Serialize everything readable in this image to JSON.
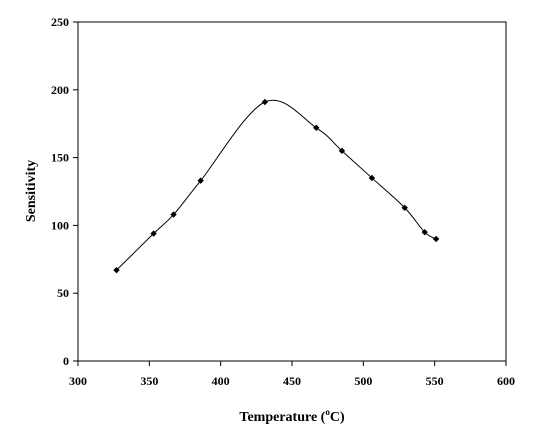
{
  "chart_data": {
    "type": "scatter",
    "xlabel": "Temperature (",
    "xlabel_sup": "o",
    "xlabel_end": "C)",
    "ylabel": "Sensitivity",
    "xlim": [
      300,
      600
    ],
    "ylim": [
      0,
      250
    ],
    "x_ticks": [
      "300",
      "350",
      "400",
      "450",
      "500",
      "550",
      "600"
    ],
    "y_ticks": [
      "0",
      "50",
      "100",
      "150",
      "200",
      "250"
    ],
    "grid": false,
    "legend": "none",
    "series": [
      {
        "x": [
          327,
          353,
          367,
          386,
          431,
          467,
          485,
          506,
          529,
          543,
          551
        ],
        "y": [
          67,
          94,
          108,
          133,
          191,
          172,
          155,
          135,
          113,
          95,
          90
        ],
        "marker": "diamond",
        "line": "smoothed",
        "color": "#000000"
      }
    ]
  }
}
